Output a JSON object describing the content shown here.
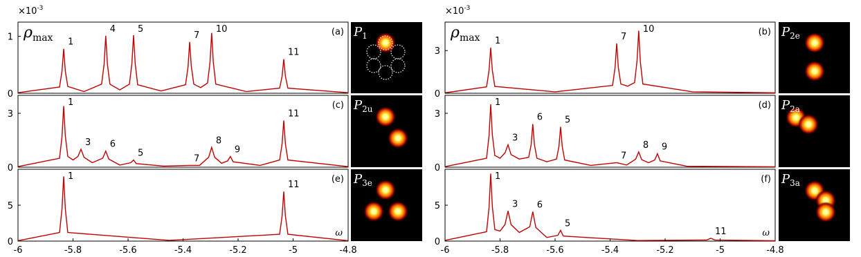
{
  "chart_data": [
    {
      "type": "line",
      "panel_label": "(a)",
      "color": "#c00000",
      "y_multiplier": {
        "base": "×10",
        "exponent": "-3"
      },
      "y_label": {
        "symbol": "ρ",
        "subscript": "max"
      },
      "inset": {
        "symbol": "P",
        "subscript": "1"
      },
      "xlim": [
        -6,
        -4.8
      ],
      "ylim": [
        0,
        1.25
      ],
      "yticks": [
        0,
        1
      ],
      "x": [
        -6,
        -5.849,
        -5.84,
        -5.834,
        -5.828,
        -5.819,
        -5.76,
        -5.696,
        -5.687,
        -5.681,
        -5.675,
        -5.666,
        -5.63,
        -5.595,
        -5.586,
        -5.58,
        -5.574,
        -5.565,
        -5.48,
        -5.391,
        -5.382,
        -5.376,
        -5.37,
        -5.361,
        -5.336,
        -5.311,
        -5.302,
        -5.296,
        -5.29,
        -5.281,
        -5.17,
        -5.049,
        -5.04,
        -5.034,
        -5.028,
        -5.019,
        -4.8
      ],
      "values": [
        0.01,
        0.11,
        0.39,
        0.78,
        0.39,
        0.12,
        0.03,
        0.16,
        0.51,
        1.01,
        0.51,
        0.16,
        0.06,
        0.16,
        0.52,
        1.02,
        0.52,
        0.15,
        0.04,
        0.15,
        0.46,
        0.9,
        0.47,
        0.16,
        0.1,
        0.18,
        0.55,
        1.06,
        0.54,
        0.16,
        0.03,
        0.09,
        0.3,
        0.6,
        0.3,
        0.09,
        0.01
      ],
      "annotation_color": "#22dd22",
      "annotations": [
        {
          "text": "1",
          "x": -5.834
        },
        {
          "text": "4",
          "x": -5.681
        },
        {
          "text": "5",
          "x": -5.58
        },
        {
          "text": "7",
          "x": -5.376
        },
        {
          "text": "10",
          "x": -5.296
        },
        {
          "text": "11",
          "x": -5.034
        }
      ]
    },
    {
      "type": "line",
      "panel_label": "(b)",
      "color": "#c00000",
      "y_multiplier": {
        "base": "×10",
        "exponent": "-3"
      },
      "y_label": {
        "symbol": "ρ",
        "subscript": "max"
      },
      "inset": {
        "symbol": "P",
        "subscript": "2e"
      },
      "xlim": [
        -6,
        -4.8
      ],
      "ylim": [
        0,
        5
      ],
      "yticks": [
        0,
        3
      ],
      "x": [
        -6,
        -5.849,
        -5.84,
        -5.834,
        -5.828,
        -5.819,
        -5.6,
        -5.391,
        -5.382,
        -5.376,
        -5.37,
        -5.361,
        -5.336,
        -5.311,
        -5.302,
        -5.296,
        -5.29,
        -5.281,
        -5.1,
        -4.8
      ],
      "values": [
        0.03,
        0.45,
        1.6,
        3.2,
        1.6,
        0.48,
        0.1,
        0.55,
        1.8,
        3.5,
        1.8,
        0.65,
        0.5,
        0.75,
        2.3,
        4.4,
        2.2,
        0.65,
        0.1,
        0.03
      ],
      "annotation_color": "#22dd22",
      "annotations": [
        {
          "text": "1",
          "x": -5.834
        },
        {
          "text": "7",
          "x": -5.376
        },
        {
          "text": "10",
          "x": -5.296
        }
      ]
    },
    {
      "type": "line",
      "panel_label": "(c)",
      "color": "#c00000",
      "inset": {
        "symbol": "P",
        "subscript": "2u"
      },
      "xlim": [
        -6,
        -4.8
      ],
      "ylim": [
        0,
        4
      ],
      "yticks": [
        0,
        3
      ],
      "x": [
        -6,
        -5.849,
        -5.84,
        -5.834,
        -5.828,
        -5.819,
        -5.8,
        -5.782,
        -5.771,
        -5.76,
        -5.73,
        -5.692,
        -5.681,
        -5.67,
        -5.63,
        -5.59,
        -5.58,
        -5.57,
        -5.47,
        -5.376,
        -5.34,
        -5.307,
        -5.296,
        -5.285,
        -5.26,
        -5.238,
        -5.228,
        -5.218,
        -5.12,
        -5.049,
        -5.04,
        -5.034,
        -5.028,
        -5.019,
        -4.8
      ],
      "values": [
        0.03,
        0.5,
        1.7,
        3.4,
        1.75,
        0.6,
        0.4,
        0.6,
        1.0,
        0.55,
        0.25,
        0.5,
        0.9,
        0.45,
        0.12,
        0.25,
        0.4,
        0.2,
        0.06,
        0.1,
        0.1,
        0.55,
        1.1,
        0.55,
        0.22,
        0.35,
        0.6,
        0.3,
        0.1,
        0.4,
        1.3,
        2.6,
        1.3,
        0.4,
        0.03
      ],
      "annotation_color": "#22dd22",
      "annotations": [
        {
          "text": "1",
          "x": -5.834
        },
        {
          "text": "3",
          "x": -5.771
        },
        {
          "text": "6",
          "x": -5.681
        },
        {
          "text": "5",
          "x": -5.58
        },
        {
          "text": "7",
          "x": -5.376
        },
        {
          "text": "8",
          "x": -5.296
        },
        {
          "text": "9",
          "x": -5.228
        },
        {
          "text": "11",
          "x": -5.034
        }
      ]
    },
    {
      "type": "line",
      "panel_label": "(d)",
      "color": "#c00000",
      "inset": {
        "symbol": "P",
        "subscript": "2a"
      },
      "xlim": [
        -6,
        -4.8
      ],
      "ylim": [
        0,
        4
      ],
      "yticks": [
        0,
        3
      ],
      "x": [
        -6,
        -5.849,
        -5.84,
        -5.834,
        -5.828,
        -5.819,
        -5.8,
        -5.782,
        -5.771,
        -5.76,
        -5.73,
        -5.696,
        -5.687,
        -5.681,
        -5.675,
        -5.666,
        -5.63,
        -5.595,
        -5.586,
        -5.58,
        -5.574,
        -5.565,
        -5.47,
        -5.376,
        -5.34,
        -5.307,
        -5.296,
        -5.285,
        -5.26,
        -5.238,
        -5.228,
        -5.218,
        -5.12,
        -4.8
      ],
      "values": [
        0.03,
        0.5,
        1.75,
        3.5,
        1.8,
        0.65,
        0.5,
        0.8,
        1.25,
        0.7,
        0.45,
        0.55,
        1.25,
        2.4,
        1.25,
        0.5,
        0.3,
        0.45,
        1.15,
        2.25,
        1.15,
        0.4,
        0.1,
        0.25,
        0.12,
        0.45,
        0.85,
        0.42,
        0.25,
        0.4,
        0.75,
        0.35,
        0.05,
        0.02
      ],
      "annotation_color": "#22dd22",
      "annotations": [
        {
          "text": "1",
          "x": -5.834
        },
        {
          "text": "3",
          "x": -5.771
        },
        {
          "text": "6",
          "x": -5.681
        },
        {
          "text": "5",
          "x": -5.58
        },
        {
          "text": "7",
          "x": -5.376
        },
        {
          "text": "8",
          "x": -5.296
        },
        {
          "text": "9",
          "x": -5.228
        }
      ]
    },
    {
      "type": "line",
      "panel_label": "(e)",
      "color": "#c00000",
      "x_label": "ω",
      "inset": {
        "symbol": "P",
        "subscript": "3e"
      },
      "xlim": [
        -6,
        -4.8
      ],
      "xticks": [
        -6,
        -5.8,
        -5.6,
        -5.4,
        -5.2,
        -5,
        -4.8
      ],
      "ylim": [
        0,
        10
      ],
      "yticks": [
        0,
        5
      ],
      "x": [
        -6,
        -5.849,
        -5.84,
        -5.834,
        -5.828,
        -5.819,
        -5.45,
        -5.049,
        -5.04,
        -5.034,
        -5.028,
        -5.019,
        -4.8
      ],
      "values": [
        0.05,
        1.2,
        4.5,
        9.0,
        4.5,
        1.2,
        0.1,
        0.95,
        3.5,
        6.9,
        3.5,
        0.95,
        0.05
      ],
      "annotation_color": "#22dd22",
      "annotations": [
        {
          "text": "1",
          "x": -5.834
        },
        {
          "text": "11",
          "x": -5.034
        }
      ]
    },
    {
      "type": "line",
      "panel_label": "(f)",
      "color": "#c00000",
      "x_label": "ω",
      "inset": {
        "symbol": "P",
        "subscript": "3a"
      },
      "xlim": [
        -6,
        -4.8
      ],
      "xticks": [
        -6,
        -5.8,
        -5.6,
        -5.4,
        -5.2,
        -5,
        -4.8
      ],
      "ylim": [
        0,
        10
      ],
      "yticks": [
        0,
        5
      ],
      "x": [
        -6,
        -5.849,
        -5.84,
        -5.834,
        -5.828,
        -5.819,
        -5.8,
        -5.782,
        -5.771,
        -5.76,
        -5.73,
        -5.692,
        -5.681,
        -5.67,
        -5.63,
        -5.59,
        -5.58,
        -5.57,
        -5.3,
        -5.049,
        -5.034,
        -5.019,
        -4.8
      ],
      "values": [
        0.1,
        1.3,
        4.7,
        9.4,
        4.8,
        1.6,
        1.4,
        2.3,
        4.2,
        2.3,
        1.2,
        2.0,
        4.1,
        1.9,
        0.5,
        0.8,
        1.5,
        0.7,
        0.08,
        0.15,
        0.4,
        0.15,
        0.05
      ],
      "annotation_color": "#22dd22",
      "annotations": [
        {
          "text": "1",
          "x": -5.834
        },
        {
          "text": "3",
          "x": -5.771
        },
        {
          "text": "6",
          "x": -5.681
        },
        {
          "text": "5",
          "x": -5.58
        },
        {
          "text": "11",
          "x": -5.034
        }
      ]
    }
  ]
}
